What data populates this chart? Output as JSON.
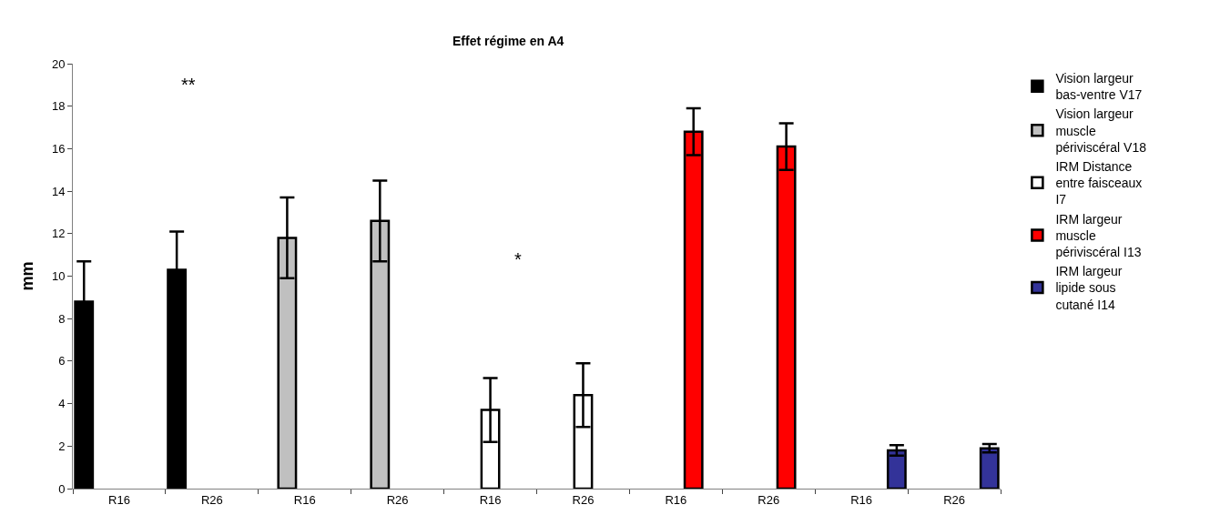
{
  "chart_data": {
    "type": "bar",
    "title": "Effet régime en A4",
    "ylabel": "mm",
    "categories": [
      "R16",
      "R26",
      "R16",
      "R26",
      "R16",
      "R26",
      "R16",
      "R26",
      "R16",
      "R26"
    ],
    "series": [
      {
        "name": "Vision largeur bas-ventre V17",
        "color": "#000000",
        "values": [
          8.8,
          10.3,
          null,
          null,
          null,
          null,
          null,
          null,
          null,
          null
        ],
        "errors": [
          1.9,
          1.8,
          null,
          null,
          null,
          null,
          null,
          null,
          null,
          null
        ]
      },
      {
        "name": "Vision largeur muscle périviscéral V18",
        "color": "#c0c0c0",
        "values": [
          null,
          null,
          11.8,
          12.6,
          null,
          null,
          null,
          null,
          null,
          null
        ],
        "errors": [
          null,
          null,
          1.9,
          1.9,
          null,
          null,
          null,
          null,
          null,
          null
        ]
      },
      {
        "name": "IRM Distance entre faisceaux I7",
        "color": "#ffffff",
        "values": [
          null,
          null,
          null,
          null,
          3.7,
          4.4,
          null,
          null,
          null,
          null
        ],
        "errors": [
          null,
          null,
          null,
          null,
          1.5,
          1.5,
          null,
          null,
          null,
          null
        ]
      },
      {
        "name": "IRM largeur muscle périviscéral I13",
        "color": "#ff0000",
        "values": [
          null,
          null,
          null,
          null,
          null,
          null,
          16.8,
          16.1,
          null,
          null
        ],
        "errors": [
          null,
          null,
          null,
          null,
          null,
          null,
          1.1,
          1.1,
          null,
          null
        ]
      },
      {
        "name": "IRM largeur lipide sous cutané I14",
        "color": "#333399",
        "values": [
          null,
          null,
          null,
          null,
          null,
          null,
          null,
          null,
          1.8,
          1.9
        ],
        "errors": [
          null,
          null,
          null,
          null,
          null,
          null,
          null,
          null,
          0.25,
          0.2
        ]
      }
    ],
    "ylim": [
      0,
      20
    ],
    "yticks": [
      0,
      2,
      4,
      6,
      8,
      10,
      12,
      14,
      16,
      18,
      20
    ],
    "annotations": [
      "**",
      "*"
    ],
    "legend": "right"
  }
}
